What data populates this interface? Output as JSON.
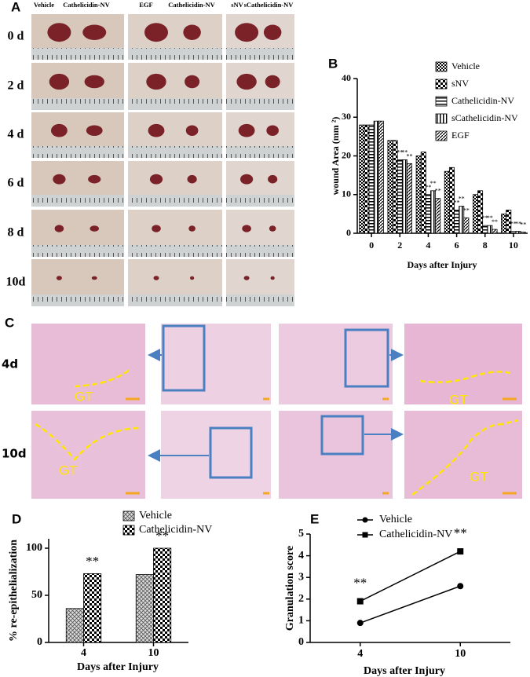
{
  "panel_a": {
    "panel_label": "A",
    "column_labels": [
      "Vehicle",
      "Cathelicidin-NV",
      "EGF",
      "Cathelicidin-NV",
      "sNV",
      "sCathelicidin-NV"
    ],
    "row_labels": [
      "0 d",
      "2 d",
      "4 d",
      "6 d",
      "8 d",
      "10d"
    ]
  },
  "panel_c": {
    "panel_label": "C",
    "row_labels": [
      "4d",
      "10d"
    ],
    "gt_labels": [
      "GT",
      "GT",
      "GT",
      "GT"
    ]
  },
  "chart_data": [
    {
      "panel_label": "B",
      "type": "bar",
      "xlabel": "Days after Injury",
      "ylabel": "wound Area (mm ²)",
      "categories": [
        "0",
        "2",
        "4",
        "6",
        "8",
        "10"
      ],
      "ylim": [
        0,
        40
      ],
      "yticks": [
        0,
        10,
        20,
        30,
        40
      ],
      "legend": "vertical",
      "series": [
        {
          "name": "Vehicle",
          "pattern": "fine",
          "values": [
            28,
            24,
            20,
            16,
            10,
            5
          ],
          "significance": [
            null,
            null,
            null,
            null,
            null,
            null
          ]
        },
        {
          "name": "sNV",
          "pattern": "checker",
          "values": [
            28,
            24,
            21,
            17,
            11,
            6
          ],
          "significance": [
            null,
            null,
            null,
            null,
            null,
            null
          ]
        },
        {
          "name": "Cathelicidin-NV",
          "pattern": "hstripe",
          "values": [
            28,
            19,
            10,
            6,
            2,
            0.5
          ],
          "significance": [
            null,
            "**",
            "**",
            "**",
            "**",
            "**"
          ]
        },
        {
          "name": "sCathelicidin-NV",
          "pattern": "vstripe",
          "values": [
            29,
            19,
            11,
            7,
            2,
            0.5
          ],
          "significance": [
            null,
            "**",
            "**",
            "**",
            "**",
            "**"
          ]
        },
        {
          "name": "EGF",
          "pattern": "diag",
          "values": [
            29,
            18,
            9,
            4,
            1,
            0.3
          ],
          "significance": [
            null,
            "**",
            "**",
            "**",
            "**",
            "**"
          ]
        }
      ]
    },
    {
      "panel_label": "D",
      "type": "bar",
      "xlabel": "Days after Injury",
      "ylabel": "% re-epithelialization",
      "categories": [
        "4",
        "10"
      ],
      "ylim": [
        0,
        110
      ],
      "yticks": [
        0,
        50,
        100
      ],
      "legend": "stacked",
      "series": [
        {
          "name": "Vehicle",
          "pattern": "hatch",
          "values": [
            36,
            72
          ],
          "significance": [
            null,
            null
          ]
        },
        {
          "name": "Cathelicidin-NV",
          "pattern": "checker",
          "values": [
            73,
            100
          ],
          "significance": [
            "**",
            "**"
          ]
        }
      ]
    },
    {
      "panel_label": "E",
      "type": "line",
      "xlabel": "Days after Injury",
      "ylabel": "Granulation score",
      "categories": [
        "4",
        "10"
      ],
      "ylim": [
        0,
        5
      ],
      "yticks": [
        0,
        1,
        2,
        3,
        4,
        5
      ],
      "legend": "stacked",
      "series": [
        {
          "name": "Vehicle",
          "marker": "circle",
          "color": "#000000",
          "values": [
            0.9,
            2.6
          ],
          "significance": [
            null,
            null
          ]
        },
        {
          "name": "Cathelicidin-NV",
          "marker": "square",
          "color": "#000000",
          "values": [
            1.9,
            4.2
          ],
          "significance": [
            "**",
            "**"
          ]
        }
      ]
    }
  ]
}
